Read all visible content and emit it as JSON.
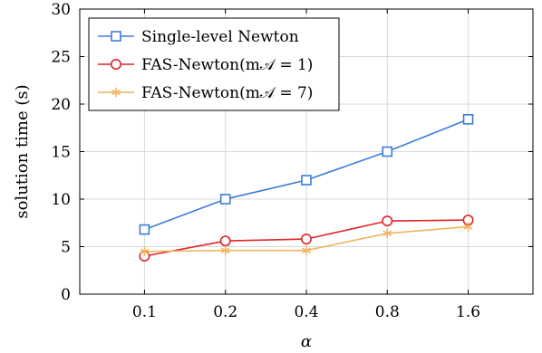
{
  "chart_data": {
    "type": "line",
    "categories": [
      "0.1",
      "0.2",
      "0.4",
      "0.8",
      "1.6"
    ],
    "xlabel": "α",
    "ylabel": "solution time (s)",
    "ylim": [
      0,
      30
    ],
    "yticks": [
      0,
      5,
      10,
      15,
      20,
      25,
      30
    ],
    "grid": true,
    "legend_position": "top-left",
    "series": [
      {
        "name": "Single-level Newton",
        "marker": "square",
        "color": "#3b7dd8",
        "values": [
          6.8,
          10.0,
          12.0,
          15.0,
          18.4
        ]
      },
      {
        "name": "FAS-Newton(m𝒜 = 1)",
        "marker": "circle",
        "color": "#e0242a",
        "values": [
          4.0,
          5.6,
          5.8,
          7.7,
          7.8
        ]
      },
      {
        "name": "FAS-Newton(m𝒜 = 7)",
        "marker": "asterisk",
        "color": "#f0b460",
        "values": [
          4.5,
          4.6,
          4.6,
          6.4,
          7.1
        ]
      }
    ]
  }
}
